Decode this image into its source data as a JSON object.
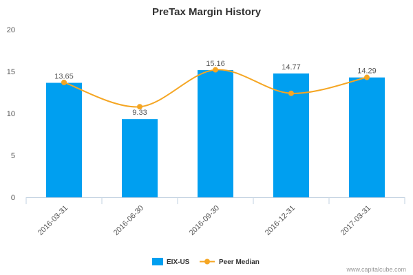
{
  "chart_data": {
    "type": "bar",
    "title": "PreTax Margin History",
    "xlabel": "",
    "ylabel": "",
    "ylim": [
      0,
      20
    ],
    "yticks": [
      0,
      5,
      10,
      15,
      20
    ],
    "categories": [
      "2016-03-31",
      "2016-06-30",
      "2016-09-30",
      "2016-12-31",
      "2017-03-31"
    ],
    "series": [
      {
        "name": "EIX-US",
        "type": "bar",
        "color": "#009FF0",
        "values": [
          13.65,
          9.33,
          15.16,
          14.77,
          14.29
        ],
        "labels": [
          "13.65",
          "9.33",
          "15.16",
          "14.77",
          "14.29"
        ]
      },
      {
        "name": "Peer Median",
        "type": "line",
        "color": "#F5A623",
        "smooth": true,
        "values": [
          13.7,
          10.8,
          15.2,
          12.4,
          14.3
        ]
      }
    ],
    "grid": false,
    "legend_position": "bottom-center"
  },
  "watermark": "www.capitalcube.com"
}
